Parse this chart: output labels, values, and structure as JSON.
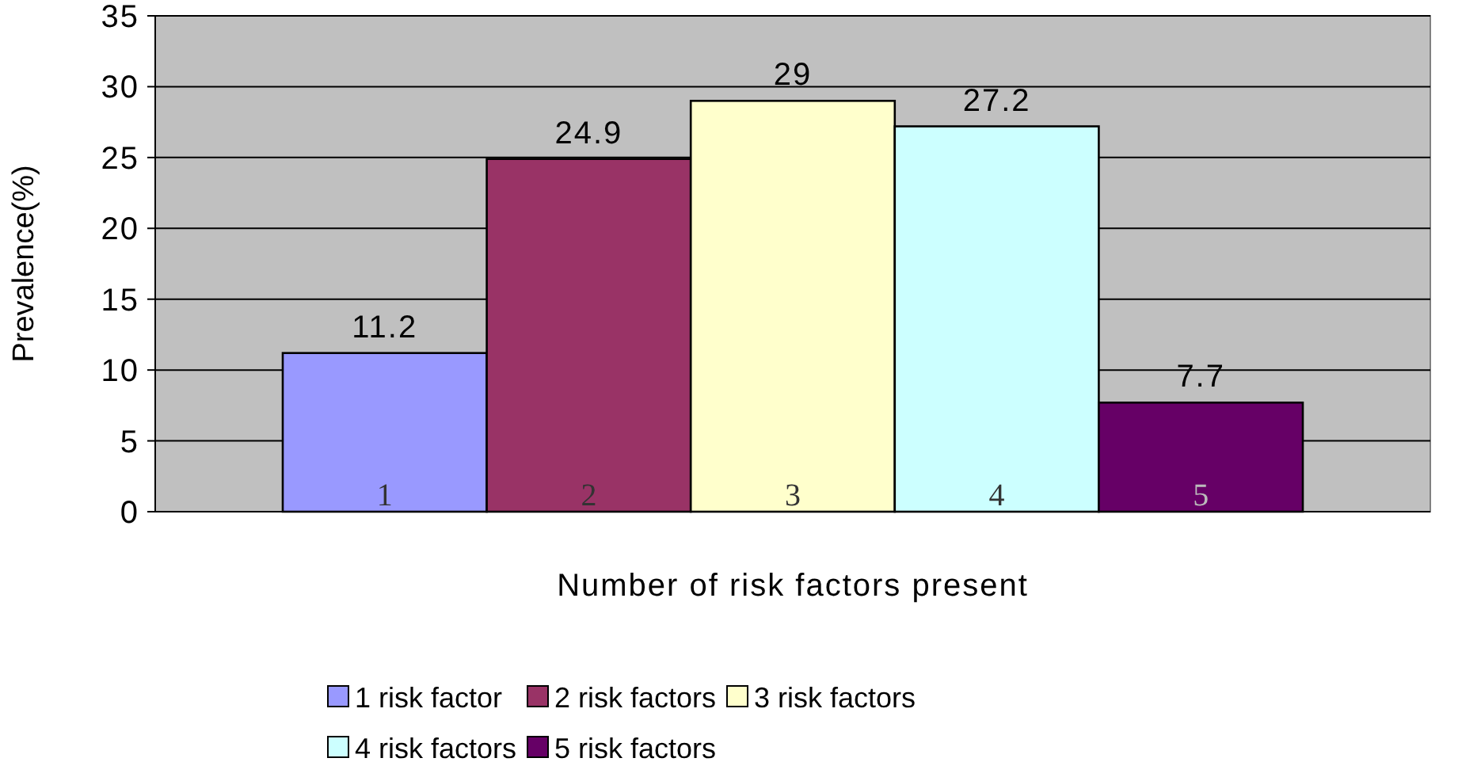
{
  "chart_data": {
    "type": "bar",
    "xlabel": "Number of risk factors present",
    "ylabel": "Prevalence(%)",
    "categories": [
      null
    ],
    "series": [
      {
        "name": "1 risk factor",
        "color": "#9999ff",
        "values": [
          11.2
        ]
      },
      {
        "name": "2 risk factors",
        "color": "#993366",
        "values": [
          24.9
        ]
      },
      {
        "name": "3 risk factors",
        "color": "#ffffcc",
        "values": [
          29
        ]
      },
      {
        "name": "4 risk factors",
        "color": "#ccffff",
        "values": [
          27.2
        ]
      },
      {
        "name": "5 risk factors",
        "color": "#660066",
        "values": [
          7.7
        ]
      }
    ],
    "annotations": [
      "1",
      "2",
      "3",
      "4",
      "5"
    ],
    "ylim": [
      0,
      35
    ],
    "yticks": [
      0,
      5,
      10,
      15,
      20,
      25,
      30,
      35
    ],
    "grid": "y",
    "data_labels": true,
    "legend": "bottom"
  }
}
